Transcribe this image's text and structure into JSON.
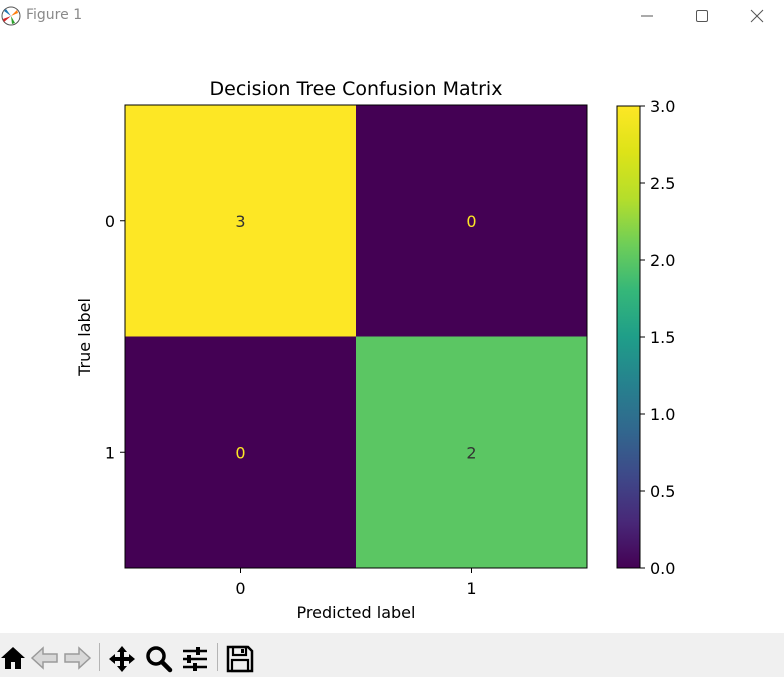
{
  "window": {
    "title": "Figure 1",
    "app_icon": "matplotlib-logo-icon",
    "controls": [
      "minimize-icon",
      "maximize-icon",
      "close-icon"
    ]
  },
  "chart_data": {
    "type": "heatmap",
    "title": "Decision Tree Confusion Matrix",
    "xlabel": "Predicted label",
    "ylabel": "True label",
    "x_categories": [
      "0",
      "1"
    ],
    "y_categories": [
      "0",
      "1"
    ],
    "values": [
      [
        3,
        0
      ],
      [
        0,
        2
      ]
    ],
    "colormap": "viridis",
    "colorbar": {
      "range": [
        0,
        3
      ],
      "ticks": [
        0.0,
        0.5,
        1.0,
        1.5,
        2.0,
        2.5,
        3.0
      ],
      "tick_labels": [
        "0.0",
        "0.5",
        "1.0",
        "1.5",
        "2.0",
        "2.5",
        "3.0"
      ]
    },
    "colors": {
      "high": "#fde725",
      "mid_2": "#35b779",
      "low": "#440154",
      "text_on_dark": "#fde725",
      "text_on_light": "#333333"
    }
  },
  "toolbar": {
    "items": [
      "home-icon",
      "back-icon",
      "forward-icon",
      "pan-icon",
      "zoom-icon",
      "configure-subplots-icon",
      "save-icon"
    ]
  }
}
